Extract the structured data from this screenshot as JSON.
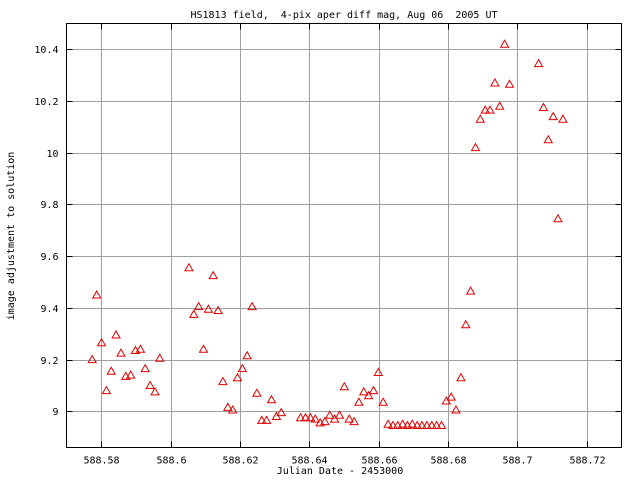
{
  "chart_data": {
    "type": "scatter",
    "title": "HS1813 field,  4-pix aper diff mag, Aug 06  2005 UT",
    "xlabel": "Julian Date - 2453000",
    "ylabel": "image adjustment to solution",
    "xlim": [
      588.57,
      588.73
    ],
    "ylim": [
      8.86,
      10.5
    ],
    "grid": true,
    "marker": "open-triangle",
    "marker_color": "#e00000",
    "x_ticks": [
      {
        "value": 588.58,
        "label": "588.58"
      },
      {
        "value": 588.6,
        "label": "588.6"
      },
      {
        "value": 588.62,
        "label": "588.62"
      },
      {
        "value": 588.64,
        "label": "588.64"
      },
      {
        "value": 588.66,
        "label": "588.66"
      },
      {
        "value": 588.68,
        "label": "588.68"
      },
      {
        "value": 588.7,
        "label": "588.7"
      },
      {
        "value": 588.72,
        "label": "588.72"
      }
    ],
    "y_ticks": [
      {
        "value": 9,
        "label": "9"
      },
      {
        "value": 9.2,
        "label": "9.2"
      },
      {
        "value": 9.4,
        "label": "9.4"
      },
      {
        "value": 9.6,
        "label": "9.6"
      },
      {
        "value": 9.8,
        "label": "9.8"
      },
      {
        "value": 10,
        "label": "10"
      },
      {
        "value": 10.2,
        "label": "10.2"
      },
      {
        "value": 10.4,
        "label": "10.4"
      }
    ],
    "points": [
      {
        "x": 588.5774,
        "y": 9.2
      },
      {
        "x": 588.5787,
        "y": 9.45
      },
      {
        "x": 588.5801,
        "y": 9.265
      },
      {
        "x": 588.5815,
        "y": 9.08
      },
      {
        "x": 588.5829,
        "y": 9.155
      },
      {
        "x": 588.5843,
        "y": 9.295
      },
      {
        "x": 588.5857,
        "y": 9.225
      },
      {
        "x": 588.5871,
        "y": 9.135
      },
      {
        "x": 588.5885,
        "y": 9.14
      },
      {
        "x": 588.5899,
        "y": 9.235
      },
      {
        "x": 588.5913,
        "y": 9.24
      },
      {
        "x": 588.5927,
        "y": 9.165
      },
      {
        "x": 588.5941,
        "y": 9.1
      },
      {
        "x": 588.5955,
        "y": 9.075
      },
      {
        "x": 588.5969,
        "y": 9.205
      },
      {
        "x": 588.6053,
        "y": 9.555
      },
      {
        "x": 588.6067,
        "y": 9.375
      },
      {
        "x": 588.6081,
        "y": 9.405
      },
      {
        "x": 588.6095,
        "y": 9.24
      },
      {
        "x": 588.6109,
        "y": 9.395
      },
      {
        "x": 588.6123,
        "y": 9.525
      },
      {
        "x": 588.6137,
        "y": 9.39
      },
      {
        "x": 588.6151,
        "y": 9.115
      },
      {
        "x": 588.6165,
        "y": 9.015
      },
      {
        "x": 588.6179,
        "y": 9.005
      },
      {
        "x": 588.6193,
        "y": 9.13
      },
      {
        "x": 588.6207,
        "y": 9.165
      },
      {
        "x": 588.6221,
        "y": 9.215
      },
      {
        "x": 588.6235,
        "y": 9.405
      },
      {
        "x": 588.6249,
        "y": 9.07
      },
      {
        "x": 588.6263,
        "y": 8.965
      },
      {
        "x": 588.6277,
        "y": 8.965
      },
      {
        "x": 588.6291,
        "y": 9.045
      },
      {
        "x": 588.6305,
        "y": 8.98
      },
      {
        "x": 588.6319,
        "y": 8.995
      },
      {
        "x": 588.6375,
        "y": 8.975
      },
      {
        "x": 588.6389,
        "y": 8.975
      },
      {
        "x": 588.6403,
        "y": 8.975
      },
      {
        "x": 588.6417,
        "y": 8.97
      },
      {
        "x": 588.6431,
        "y": 8.955
      },
      {
        "x": 588.6445,
        "y": 8.96
      },
      {
        "x": 588.6459,
        "y": 8.985
      },
      {
        "x": 588.6473,
        "y": 8.97
      },
      {
        "x": 588.6487,
        "y": 8.985
      },
      {
        "x": 588.6501,
        "y": 9.095
      },
      {
        "x": 588.6515,
        "y": 8.97
      },
      {
        "x": 588.6529,
        "y": 8.96
      },
      {
        "x": 588.6543,
        "y": 9.035
      },
      {
        "x": 588.6557,
        "y": 9.075
      },
      {
        "x": 588.6571,
        "y": 9.06
      },
      {
        "x": 588.6585,
        "y": 9.08
      },
      {
        "x": 588.6599,
        "y": 9.15
      },
      {
        "x": 588.6613,
        "y": 9.035
      },
      {
        "x": 588.6627,
        "y": 8.95
      },
      {
        "x": 588.6641,
        "y": 8.945
      },
      {
        "x": 588.6655,
        "y": 8.945
      },
      {
        "x": 588.6669,
        "y": 8.95
      },
      {
        "x": 588.6683,
        "y": 8.945
      },
      {
        "x": 588.6697,
        "y": 8.95
      },
      {
        "x": 588.6711,
        "y": 8.945
      },
      {
        "x": 588.6725,
        "y": 8.945
      },
      {
        "x": 588.6739,
        "y": 8.945
      },
      {
        "x": 588.6753,
        "y": 8.945
      },
      {
        "x": 588.6767,
        "y": 8.945
      },
      {
        "x": 588.6781,
        "y": 8.945
      },
      {
        "x": 588.6795,
        "y": 9.04
      },
      {
        "x": 588.6809,
        "y": 9.055
      },
      {
        "x": 588.6823,
        "y": 9.005
      },
      {
        "x": 588.6837,
        "y": 9.13
      },
      {
        "x": 588.6851,
        "y": 9.335
      },
      {
        "x": 588.6865,
        "y": 9.465
      },
      {
        "x": 588.6879,
        "y": 10.02
      },
      {
        "x": 588.6893,
        "y": 10.13
      },
      {
        "x": 588.6907,
        "y": 10.165
      },
      {
        "x": 588.6921,
        "y": 10.165
      },
      {
        "x": 588.6935,
        "y": 10.27
      },
      {
        "x": 588.6949,
        "y": 10.18
      },
      {
        "x": 588.6963,
        "y": 10.42
      },
      {
        "x": 588.6977,
        "y": 10.265
      },
      {
        "x": 588.7061,
        "y": 10.345
      },
      {
        "x": 588.7075,
        "y": 10.175
      },
      {
        "x": 588.7089,
        "y": 10.05
      },
      {
        "x": 588.7103,
        "y": 10.14
      },
      {
        "x": 588.7117,
        "y": 9.745
      },
      {
        "x": 588.7131,
        "y": 10.13
      }
    ]
  }
}
